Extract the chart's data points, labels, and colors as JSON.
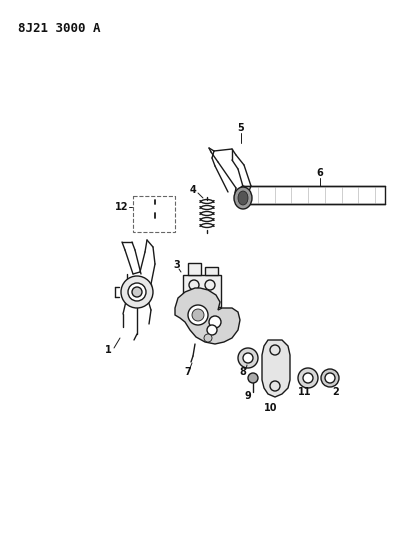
{
  "title": "8J21 3000 A",
  "bg_color": "#ffffff",
  "line_color": "#1a1a1a",
  "label_color": "#111111",
  "label_fontsize": 7,
  "figsize": [
    4.01,
    5.33
  ],
  "dpi": 100,
  "title_fontsize": 9
}
